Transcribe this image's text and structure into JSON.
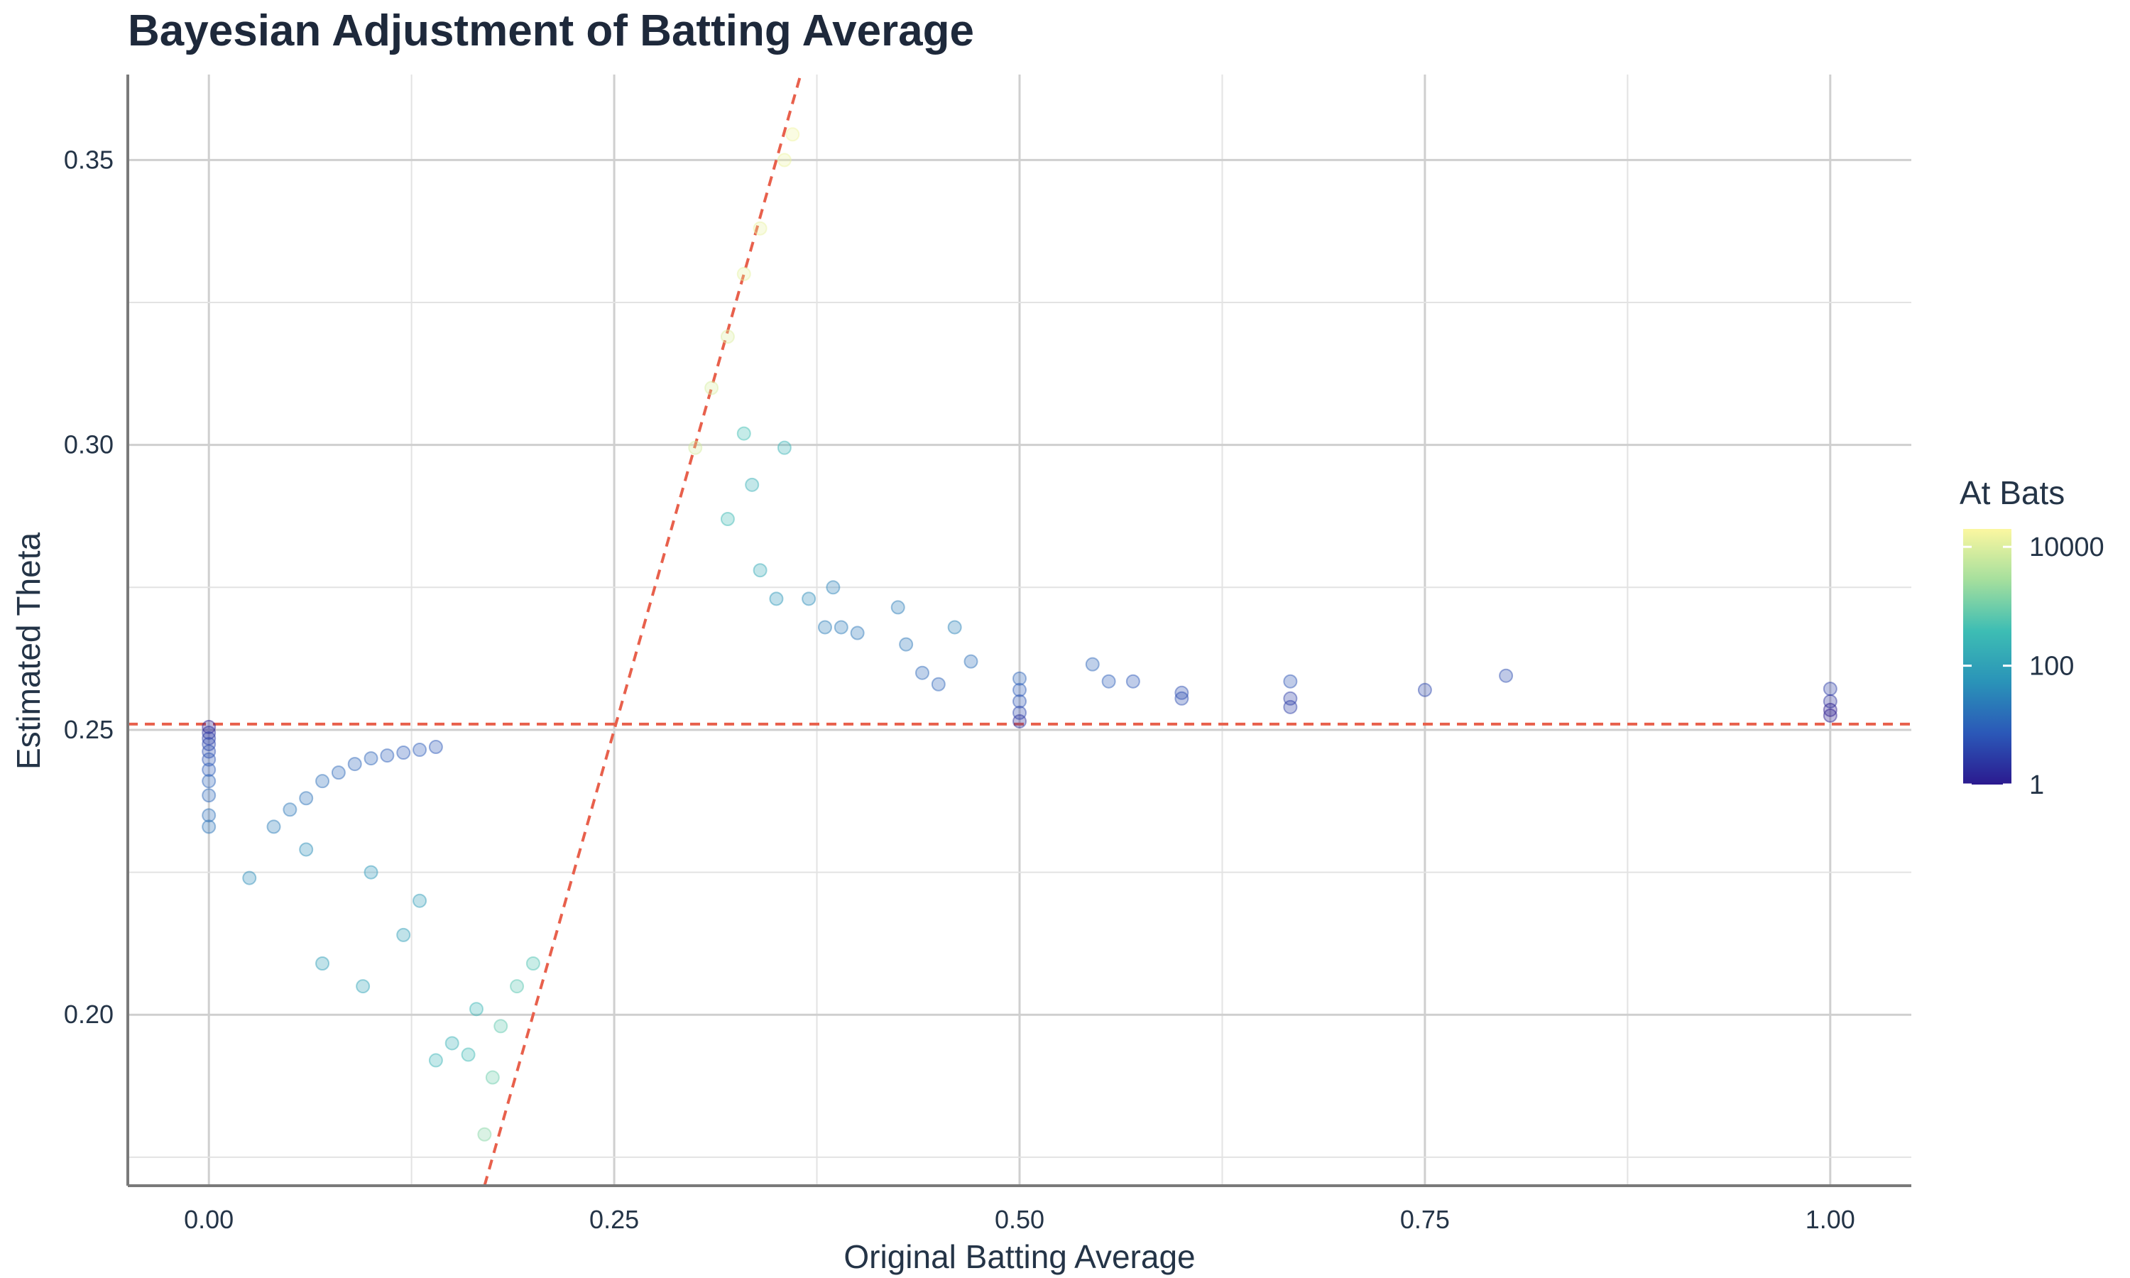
{
  "chart_data": {
    "type": "scatter",
    "title": "Bayesian Adjustment of Batting Average",
    "xlabel": "Original Batting Average",
    "ylabel": "Estimated Theta",
    "xlim": [
      -0.05,
      1.05
    ],
    "ylim": [
      0.17,
      0.365
    ],
    "x_ticks": [
      0.0,
      0.25,
      0.5,
      0.75,
      1.0
    ],
    "x_tick_labels": [
      "0.00",
      "0.25",
      "0.50",
      "0.75",
      "1.00"
    ],
    "y_ticks": [
      0.2,
      0.25,
      0.3,
      0.35
    ],
    "y_tick_labels": [
      "0.20",
      "0.25",
      "0.30",
      "0.35"
    ],
    "grid": true,
    "color_legend": {
      "title": "At Bats",
      "scale": "log",
      "range": [
        1,
        20000
      ],
      "tick_values": [
        1,
        100,
        10000
      ],
      "tick_labels": [
        "1",
        "100",
        "10000"
      ],
      "colors": [
        "#2b1a8f",
        "#2b58b8",
        "#2a93b8",
        "#3dbdb4",
        "#a5df9d",
        "#fbf7a0"
      ]
    },
    "reference_lines": [
      {
        "kind": "horizontal",
        "y": 0.251,
        "color": "#e8604c",
        "style": "dashed"
      },
      {
        "kind": "diagonal",
        "slope": 1,
        "intercept": 0,
        "color": "#e8604c",
        "style": "dashed"
      }
    ],
    "prior_mean": 0.251,
    "points": [
      {
        "x": 0.0,
        "y": 0.2505,
        "n": 1
      },
      {
        "x": 0.0,
        "y": 0.2495,
        "n": 2
      },
      {
        "x": 0.0,
        "y": 0.2485,
        "n": 3
      },
      {
        "x": 0.0,
        "y": 0.2475,
        "n": 4
      },
      {
        "x": 0.0,
        "y": 0.2462,
        "n": 5
      },
      {
        "x": 0.0,
        "y": 0.2448,
        "n": 6
      },
      {
        "x": 0.0,
        "y": 0.243,
        "n": 8
      },
      {
        "x": 0.0,
        "y": 0.241,
        "n": 10
      },
      {
        "x": 0.0,
        "y": 0.2385,
        "n": 12
      },
      {
        "x": 0.0,
        "y": 0.235,
        "n": 15
      },
      {
        "x": 0.0,
        "y": 0.233,
        "n": 18
      },
      {
        "x": 0.025,
        "y": 0.224,
        "n": 40
      },
      {
        "x": 0.04,
        "y": 0.233,
        "n": 25
      },
      {
        "x": 0.05,
        "y": 0.236,
        "n": 20
      },
      {
        "x": 0.06,
        "y": 0.238,
        "n": 17
      },
      {
        "x": 0.07,
        "y": 0.241,
        "n": 14
      },
      {
        "x": 0.08,
        "y": 0.2425,
        "n": 12
      },
      {
        "x": 0.09,
        "y": 0.244,
        "n": 11
      },
      {
        "x": 0.1,
        "y": 0.245,
        "n": 10
      },
      {
        "x": 0.11,
        "y": 0.2455,
        "n": 9
      },
      {
        "x": 0.12,
        "y": 0.246,
        "n": 8
      },
      {
        "x": 0.13,
        "y": 0.2465,
        "n": 8
      },
      {
        "x": 0.14,
        "y": 0.247,
        "n": 7
      },
      {
        "x": 0.06,
        "y": 0.229,
        "n": 45
      },
      {
        "x": 0.07,
        "y": 0.209,
        "n": 90
      },
      {
        "x": 0.095,
        "y": 0.205,
        "n": 110
      },
      {
        "x": 0.1,
        "y": 0.225,
        "n": 60
      },
      {
        "x": 0.12,
        "y": 0.214,
        "n": 90
      },
      {
        "x": 0.13,
        "y": 0.22,
        "n": 80
      },
      {
        "x": 0.14,
        "y": 0.192,
        "n": 250
      },
      {
        "x": 0.15,
        "y": 0.195,
        "n": 220
      },
      {
        "x": 0.16,
        "y": 0.193,
        "n": 300
      },
      {
        "x": 0.165,
        "y": 0.201,
        "n": 260
      },
      {
        "x": 0.17,
        "y": 0.179,
        "n": 1500
      },
      {
        "x": 0.175,
        "y": 0.189,
        "n": 900
      },
      {
        "x": 0.18,
        "y": 0.198,
        "n": 700
      },
      {
        "x": 0.19,
        "y": 0.205,
        "n": 600
      },
      {
        "x": 0.2,
        "y": 0.209,
        "n": 500
      },
      {
        "x": 0.3,
        "y": 0.2995,
        "n": 8000
      },
      {
        "x": 0.31,
        "y": 0.31,
        "n": 9000
      },
      {
        "x": 0.32,
        "y": 0.319,
        "n": 9500
      },
      {
        "x": 0.33,
        "y": 0.33,
        "n": 12000
      },
      {
        "x": 0.34,
        "y": 0.338,
        "n": 13000
      },
      {
        "x": 0.355,
        "y": 0.35,
        "n": 14000
      },
      {
        "x": 0.36,
        "y": 0.3545,
        "n": 15000
      },
      {
        "x": 0.33,
        "y": 0.302,
        "n": 400
      },
      {
        "x": 0.355,
        "y": 0.2995,
        "n": 250
      },
      {
        "x": 0.32,
        "y": 0.287,
        "n": 300
      },
      {
        "x": 0.335,
        "y": 0.293,
        "n": 200
      },
      {
        "x": 0.34,
        "y": 0.278,
        "n": 150
      },
      {
        "x": 0.35,
        "y": 0.273,
        "n": 60
      },
      {
        "x": 0.37,
        "y": 0.273,
        "n": 40
      },
      {
        "x": 0.385,
        "y": 0.275,
        "n": 30
      },
      {
        "x": 0.38,
        "y": 0.268,
        "n": 25
      },
      {
        "x": 0.39,
        "y": 0.268,
        "n": 22
      },
      {
        "x": 0.4,
        "y": 0.267,
        "n": 20
      },
      {
        "x": 0.425,
        "y": 0.2715,
        "n": 25
      },
      {
        "x": 0.43,
        "y": 0.265,
        "n": 20
      },
      {
        "x": 0.44,
        "y": 0.26,
        "n": 12
      },
      {
        "x": 0.45,
        "y": 0.258,
        "n": 10
      },
      {
        "x": 0.46,
        "y": 0.268,
        "n": 30
      },
      {
        "x": 0.47,
        "y": 0.262,
        "n": 15
      },
      {
        "x": 0.5,
        "y": 0.259,
        "n": 10
      },
      {
        "x": 0.5,
        "y": 0.257,
        "n": 8
      },
      {
        "x": 0.5,
        "y": 0.255,
        "n": 6
      },
      {
        "x": 0.5,
        "y": 0.253,
        "n": 4
      },
      {
        "x": 0.5,
        "y": 0.2515,
        "n": 2
      },
      {
        "x": 0.545,
        "y": 0.2615,
        "n": 11
      },
      {
        "x": 0.555,
        "y": 0.2585,
        "n": 9
      },
      {
        "x": 0.57,
        "y": 0.2585,
        "n": 7
      },
      {
        "x": 0.6,
        "y": 0.2565,
        "n": 5
      },
      {
        "x": 0.6,
        "y": 0.2555,
        "n": 5
      },
      {
        "x": 0.667,
        "y": 0.2585,
        "n": 6
      },
      {
        "x": 0.667,
        "y": 0.2555,
        "n": 3
      },
      {
        "x": 0.667,
        "y": 0.254,
        "n": 3
      },
      {
        "x": 0.75,
        "y": 0.257,
        "n": 4
      },
      {
        "x": 0.8,
        "y": 0.2595,
        "n": 5
      },
      {
        "x": 1.0,
        "y": 0.2572,
        "n": 3
      },
      {
        "x": 1.0,
        "y": 0.255,
        "n": 2
      },
      {
        "x": 1.0,
        "y": 0.2535,
        "n": 1
      },
      {
        "x": 1.0,
        "y": 0.2525,
        "n": 1
      }
    ]
  }
}
